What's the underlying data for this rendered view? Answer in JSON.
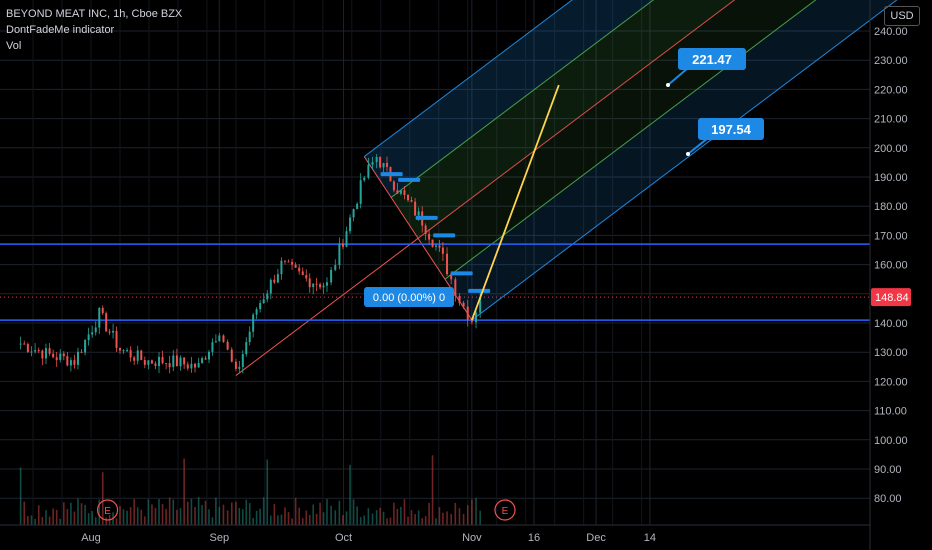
{
  "header": {
    "title": "BEYOND MEAT INC, 1h, Cboe BZX",
    "indicator": "DontFadeMe indicator",
    "volume": "Vol"
  },
  "currency_label": "USD",
  "colors": {
    "background": "#000000",
    "grid": "#1e222d",
    "up": "#26a69a",
    "down": "#ef5350",
    "level_line": "#2962ff",
    "fork_blue": "#2196f3",
    "fork_green": "#4caf50",
    "fork_red": "#ef5350",
    "projection": "#ffd54f",
    "price_tag": "#f23645",
    "callout": "#1e88e5"
  },
  "annotations": {
    "target_high": "221.47",
    "target_low": "197.54",
    "measure": "0.00 (0.00%) 0",
    "current_price": "148.84",
    "earnings_marker": "E"
  },
  "chart_data": {
    "type": "candlestick",
    "title": "BEYOND MEAT INC, 1h, Cboe BZX",
    "xlabel": "",
    "ylabel": "",
    "x_ticks": [
      "Aug",
      "Sep",
      "Oct",
      "Nov",
      "16",
      "Dec",
      "14"
    ],
    "y_ticks": [
      "80.00",
      "90.00",
      "100.00",
      "110.00",
      "120.00",
      "130.00",
      "140.00",
      "150.00",
      "160.00",
      "170.00",
      "180.00",
      "190.00",
      "200.00",
      "210.00",
      "220.00",
      "230.00",
      "240.00"
    ],
    "ylim": [
      74,
      247
    ],
    "grid": true,
    "last_price": 148.84,
    "horizontal_levels": [
      167,
      141
    ],
    "price_path": [
      {
        "date": "Jul 15",
        "close": 133
      },
      {
        "date": "Jul 22",
        "close": 129
      },
      {
        "date": "Jul 28",
        "close": 127
      },
      {
        "date": "Aug 3",
        "close": 143
      },
      {
        "date": "Aug 8",
        "close": 131
      },
      {
        "date": "Aug 14",
        "close": 127
      },
      {
        "date": "Aug 20",
        "close": 127
      },
      {
        "date": "Aug 27",
        "close": 125
      },
      {
        "date": "Sep 1",
        "close": 138
      },
      {
        "date": "Sep 5",
        "close": 122
      },
      {
        "date": "Sep 10",
        "close": 145
      },
      {
        "date": "Sep 16",
        "close": 160
      },
      {
        "date": "Sep 22",
        "close": 155
      },
      {
        "date": "Sep 27",
        "close": 153
      },
      {
        "date": "Sep 30",
        "close": 165
      },
      {
        "date": "Oct 6",
        "close": 190
      },
      {
        "date": "Oct 9",
        "close": 197
      },
      {
        "date": "Oct 14",
        "close": 186
      },
      {
        "date": "Oct 20",
        "close": 175
      },
      {
        "date": "Oct 25",
        "close": 162
      },
      {
        "date": "Oct 29",
        "close": 148
      },
      {
        "date": "Nov 1",
        "close": 141
      },
      {
        "date": "Nov 3",
        "close": 148.84
      }
    ],
    "pitchfork": {
      "pivot_1": {
        "date": "Sep 5",
        "price": 122
      },
      "pivot_2": {
        "date": "Oct 6",
        "price": 197
      },
      "pivot_3": {
        "date": "Nov 1",
        "price": 141
      }
    },
    "projection": {
      "from": {
        "date": "Nov 1",
        "price": 141
      },
      "to": {
        "date": "Nov 22",
        "price": 221.47
      }
    },
    "earnings_events": [
      "Aug 5",
      "Nov 9"
    ]
  }
}
